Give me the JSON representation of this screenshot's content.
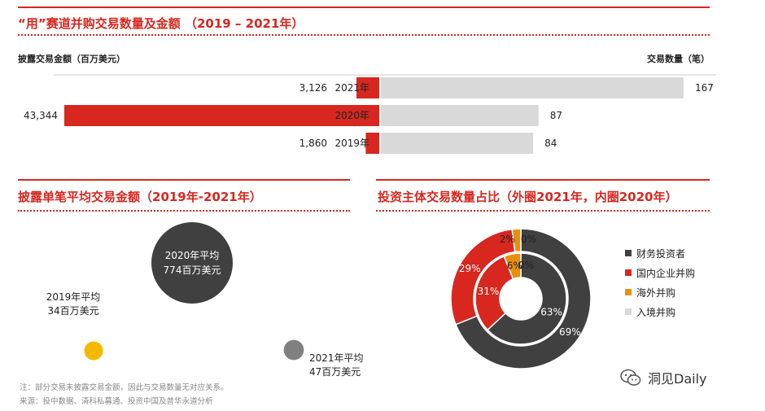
{
  "panels": {
    "top": {
      "title": "“用”赛道并购交易数量及金额 （2019 – 2021年）"
    },
    "left": {
      "title": "披露单笔平均交易金额（2019年-2021年）"
    },
    "right": {
      "title": "投资主体交易数量占比（外圈2021年，内圈2020年）"
    }
  },
  "chart_data": [
    {
      "type": "bar",
      "orientation": "horizontal-butterfly",
      "categories": [
        "2021年",
        "2020年",
        "2019年"
      ],
      "left_axis_title": "披露交易金额（百万美元）",
      "right_axis_title": "交易数量（笔）",
      "series": [
        {
          "name": "披露交易金额（百万美元）",
          "values": [
            3126,
            43344,
            1860
          ],
          "labels": [
            "3,126",
            "43,344",
            "1,860"
          ],
          "color": "#d7271f"
        },
        {
          "name": "交易数量（笔）",
          "values": [
            167,
            87,
            84
          ],
          "labels": [
            "167",
            "87",
            "84"
          ],
          "color": "#d9d9d9"
        }
      ]
    },
    {
      "type": "scatter",
      "subtype": "bubble",
      "points": [
        {
          "year": "2020年",
          "value": 774,
          "line1": "2020年平均",
          "line2": "774百万美元",
          "color": "#404040"
        },
        {
          "year": "2019年",
          "value": 34,
          "line1": "2019年平均",
          "line2": "34百万美元",
          "color": "#f5b800"
        },
        {
          "year": "2021年",
          "value": 47,
          "line1": "2021年平均",
          "line2": "47百万美元",
          "color": "#808080"
        }
      ]
    },
    {
      "type": "pie",
      "subtype": "double-donut",
      "legend_position": "right",
      "categories": [
        "财务投资者",
        "国内企业并购",
        "海外并购",
        "入境并购"
      ],
      "colors": [
        "#404040",
        "#d7271f",
        "#e8900c",
        "#d9d9d9"
      ],
      "outer": {
        "year": "2021年",
        "values": [
          69,
          29,
          2,
          0
        ],
        "labels": [
          "69%",
          "29%",
          "2%",
          "0%"
        ]
      },
      "inner": {
        "year": "2020年",
        "values": [
          63,
          31,
          6,
          0
        ],
        "labels": [
          "63%",
          "31%",
          "6%",
          "0%"
        ]
      }
    }
  ],
  "footnotes": {
    "note": "注：部分交易未披露交易金额，因此与交易数量无对应关系。",
    "source": "来源：投中数据、清科私募通、投资中国及普华永道分析"
  },
  "watermark": {
    "brand": "洞见Daily",
    "icon": "wechat-icon"
  }
}
